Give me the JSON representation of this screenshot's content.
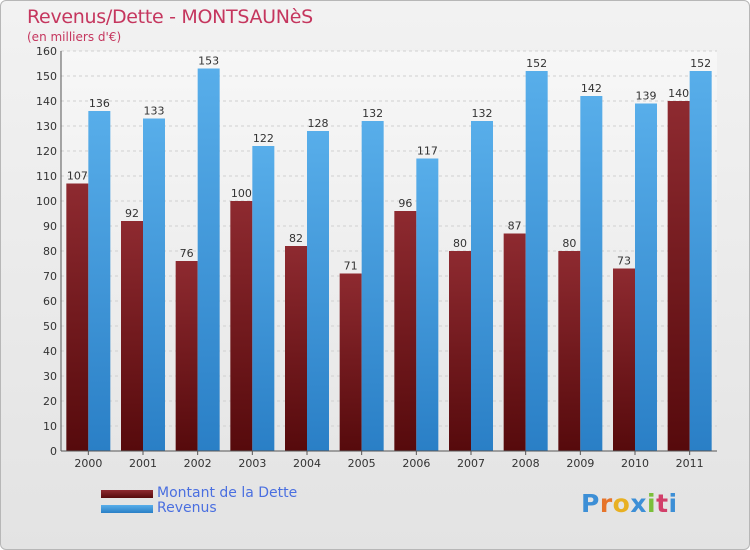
{
  "title": "Revenus/Dette - MONTSAUNèS",
  "subtitle": "(en milliers d'€)",
  "logo_text": "Proxiti",
  "colors": {
    "dette": "#7a1b1f",
    "revenus": "#3d97de",
    "title": "#c5365e",
    "legend_text": "#4a6fe0"
  },
  "chart_data": {
    "type": "bar",
    "title": "Revenus/Dette - MONTSAUNèS",
    "ylabel": "(en milliers d'€)",
    "categories": [
      "2000",
      "2001",
      "2002",
      "2003",
      "2004",
      "2005",
      "2006",
      "2007",
      "2008",
      "2009",
      "2010",
      "2011"
    ],
    "series": [
      {
        "name": "Montant de la Dette",
        "values": [
          107,
          92,
          76,
          100,
          82,
          71,
          96,
          80,
          87,
          80,
          73,
          140
        ]
      },
      {
        "name": "Revenus",
        "values": [
          136,
          133,
          153,
          122,
          128,
          132,
          117,
          132,
          152,
          142,
          139,
          152
        ]
      }
    ],
    "ylim": [
      0,
      160
    ],
    "yticks": [
      0,
      10,
      20,
      30,
      40,
      50,
      60,
      70,
      80,
      90,
      100,
      110,
      120,
      130,
      140,
      150,
      160
    ],
    "grid": true,
    "legend_position": "bottom-left"
  }
}
